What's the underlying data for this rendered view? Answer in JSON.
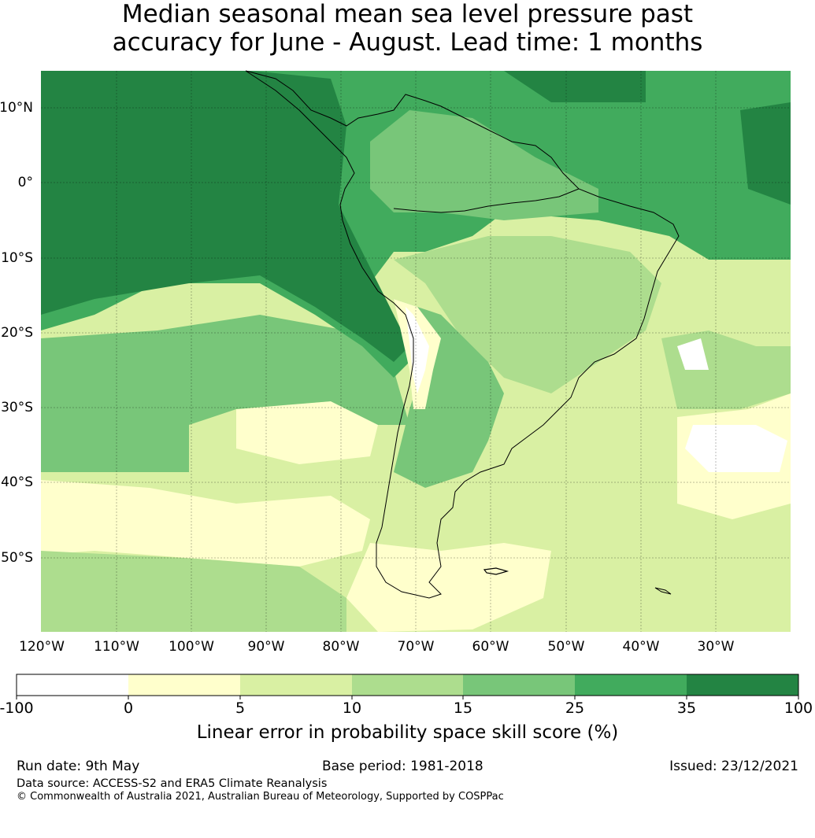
{
  "title_line1": "Median seasonal mean sea level pressure past",
  "title_line2": "accuracy for June - August. Lead time: 1 months",
  "lat_labels": [
    "10°N",
    "0°",
    "10°S",
    "20°S",
    "30°S",
    "40°S",
    "50°S"
  ],
  "lon_labels": [
    "120°W",
    "110°W",
    "100°W",
    "90°W",
    "80°W",
    "70°W",
    "60°W",
    "50°W",
    "40°W",
    "30°W"
  ],
  "colorbar": {
    "ticks": [
      "-100",
      "0",
      "5",
      "10",
      "15",
      "25",
      "35",
      "100"
    ],
    "colors": [
      "#ffffff",
      "#ffffcc",
      "#d9f0a3",
      "#addd8e",
      "#78c679",
      "#41ab5d",
      "#238443"
    ],
    "label": "Linear error in probability space skill score (%)"
  },
  "footer": {
    "run_date": "Run date: 9th May",
    "base_period": "Base period: 1981-2018",
    "issued": "Issued: 23/12/2021",
    "data_source": "Data source: ACCESS-S2 and ERA5 Climate Reanalysis",
    "copyright": "© Commonwealth of Australia 2021, Australian Bureau of Meteorology, Supported by COSPPac"
  }
}
